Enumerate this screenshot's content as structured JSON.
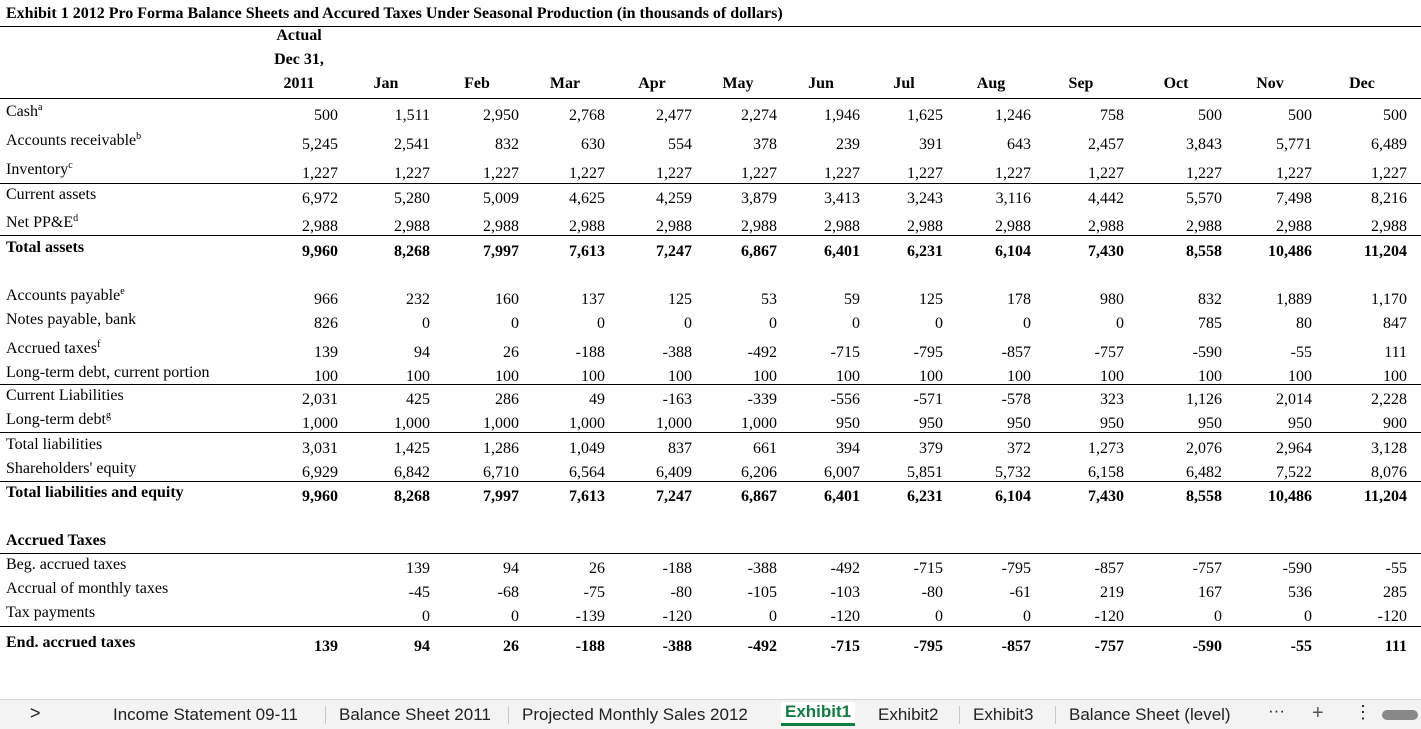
{
  "header": {
    "title": "Exhibit 1 2012 Pro Forma Balance Sheets and Accured Taxes Under Seasonal Production (in thousands of dollars)",
    "actual_header": [
      "Actual",
      "Dec 31,",
      "2011"
    ],
    "months": [
      "Jan",
      "Feb",
      "Mar",
      "Apr",
      "May",
      "Jun",
      "Jul",
      "Aug",
      "Sep",
      "Oct",
      "Nov",
      "Dec"
    ]
  },
  "table": {
    "rows": [
      {
        "label": "Cash",
        "sup": "a",
        "values": [
          "500",
          "1,511",
          "2,950",
          "2,768",
          "2,477",
          "2,274",
          "1,946",
          "1,625",
          "1,246",
          "758",
          "500",
          "500",
          "500"
        ]
      },
      {
        "label": "Accounts receivable",
        "sup": "b",
        "values": [
          "5,245",
          "2,541",
          "832",
          "630",
          "554",
          "378",
          "239",
          "391",
          "643",
          "2,457",
          "3,843",
          "5,771",
          "6,489"
        ]
      },
      {
        "label": "Inventory",
        "sup": "c",
        "values": [
          "1,227",
          "1,227",
          "1,227",
          "1,227",
          "1,227",
          "1,227",
          "1,227",
          "1,227",
          "1,227",
          "1,227",
          "1,227",
          "1,227",
          "1,227"
        ]
      },
      {
        "label": "Current assets",
        "values": [
          "6,972",
          "5,280",
          "5,009",
          "4,625",
          "4,259",
          "3,879",
          "3,413",
          "3,243",
          "3,116",
          "4,442",
          "5,570",
          "7,498",
          "8,216"
        ]
      },
      {
        "label": "Net PP&E",
        "sup": "d",
        "values": [
          "2,988",
          "2,988",
          "2,988",
          "2,988",
          "2,988",
          "2,988",
          "2,988",
          "2,988",
          "2,988",
          "2,988",
          "2,988",
          "2,988",
          "2,988"
        ]
      },
      {
        "label": "Total assets",
        "bold": true,
        "values": [
          "9,960",
          "8,268",
          "7,997",
          "7,613",
          "7,247",
          "6,867",
          "6,401",
          "6,231",
          "6,104",
          "7,430",
          "8,558",
          "10,486",
          "11,204"
        ]
      },
      {
        "label": "Accounts payable",
        "sup": "e",
        "values": [
          "966",
          "232",
          "160",
          "137",
          "125",
          "53",
          "59",
          "125",
          "178",
          "980",
          "832",
          "1,889",
          "1,170"
        ]
      },
      {
        "label": "Notes payable, bank",
        "values": [
          "826",
          "0",
          "0",
          "0",
          "0",
          "0",
          "0",
          "0",
          "0",
          "0",
          "785",
          "80",
          "847"
        ]
      },
      {
        "label": "Accrued taxes",
        "sup": "f",
        "values": [
          "139",
          "94",
          "26",
          "-188",
          "-388",
          "-492",
          "-715",
          "-795",
          "-857",
          "-757",
          "-590",
          "-55",
          "111"
        ]
      },
      {
        "label": "Long-term debt, current portion",
        "values": [
          "100",
          "100",
          "100",
          "100",
          "100",
          "100",
          "100",
          "100",
          "100",
          "100",
          "100",
          "100",
          "100"
        ]
      },
      {
        "label": "Current Liabilities",
        "values": [
          "2,031",
          "425",
          "286",
          "49",
          "-163",
          "-339",
          "-556",
          "-571",
          "-578",
          "323",
          "1,126",
          "2,014",
          "2,228"
        ]
      },
      {
        "label": "Long-term debt",
        "sup": "g",
        "values": [
          "1,000",
          "1,000",
          "1,000",
          "1,000",
          "1,000",
          "1,000",
          "950",
          "950",
          "950",
          "950",
          "950",
          "950",
          "900"
        ]
      },
      {
        "label": "Total liabilities",
        "values": [
          "3,031",
          "1,425",
          "1,286",
          "1,049",
          "837",
          "661",
          "394",
          "379",
          "372",
          "1,273",
          "2,076",
          "2,964",
          "3,128"
        ]
      },
      {
        "label": "Shareholders' equity",
        "values": [
          "6,929",
          "6,842",
          "6,710",
          "6,564",
          "6,409",
          "6,206",
          "6,007",
          "5,851",
          "5,732",
          "6,158",
          "6,482",
          "7,522",
          "8,076"
        ]
      },
      {
        "label": "Total liabilities and equity",
        "bold": true,
        "values": [
          "9,960",
          "8,268",
          "7,997",
          "7,613",
          "7,247",
          "6,867",
          "6,401",
          "6,231",
          "6,104",
          "7,430",
          "8,558",
          "10,486",
          "11,204"
        ]
      },
      {
        "label": "Accrued Taxes",
        "bold": true
      },
      {
        "label": "Beg. accrued taxes",
        "values": [
          null,
          "139",
          "94",
          "26",
          "-188",
          "-388",
          "-492",
          "-715",
          "-795",
          "-857",
          "-757",
          "-590",
          "-55"
        ]
      },
      {
        "label": "Accrual of monthly taxes",
        "values": [
          null,
          "-45",
          "-68",
          "-75",
          "-80",
          "-105",
          "-103",
          "-80",
          "-61",
          "219",
          "167",
          "536",
          "285"
        ]
      },
      {
        "label": "Tax payments",
        "values": [
          null,
          "0",
          "0",
          "-139",
          "-120",
          "0",
          "-120",
          "0",
          "0",
          "-120",
          "0",
          "0",
          "-120"
        ]
      },
      {
        "label": "End. accrued taxes",
        "bold": true,
        "values": [
          "139",
          "94",
          "26",
          "-188",
          "-388",
          "-492",
          "-715",
          "-795",
          "-857",
          "-757",
          "-590",
          "-55",
          "111"
        ]
      }
    ]
  },
  "sheet_tabs": [
    "Income Statement 09-11",
    "Balance Sheet 2011",
    "Projected Monthly Sales 2012",
    "Exhibit1",
    "Exhibit2",
    "Exhibit3",
    "Balance Sheet (level)"
  ],
  "active_tab": 3
}
